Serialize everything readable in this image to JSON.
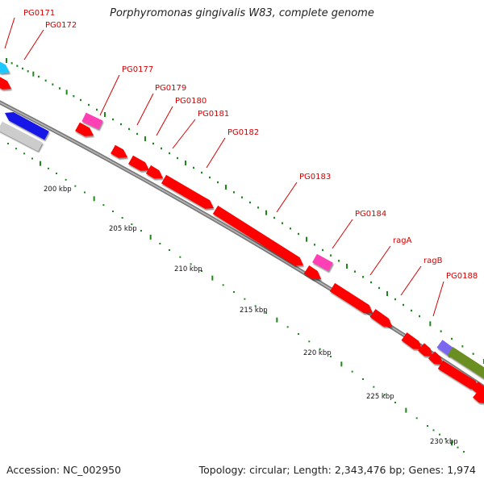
{
  "title": "Porphyromonas gingivalis W83, complete genome",
  "footer": {
    "accession_label": "Accession:",
    "accession": "NC_002950",
    "summary": "Topology: circular; Length: 2,343,476 bp; Genes: 1,974"
  },
  "colors": {
    "gene_forward": "#ff0000",
    "trna": "#ff3fb4",
    "blue_gene": "#1414e6",
    "cyan_gene": "#1ec8ff",
    "gray_gene": "#cccccc",
    "olive_gene": "#6b8e23",
    "violet_gene": "#7b68ee",
    "backbone": "#888888",
    "gc_ticks": "#1a8a1a",
    "label_text": "#d40000"
  },
  "gene_labels": [
    "PG0171",
    "PG0172",
    "PG0177",
    "PG0179",
    "PG0180",
    "PG0181",
    "PG0182",
    "PG0183",
    "PG0184",
    "ragA",
    "ragB",
    "PG0188"
  ],
  "kbp_ticks": [
    "200 kbp",
    "205 kbp",
    "210 kbp",
    "215 kbp",
    "220 kbp",
    "225 kbp",
    "230 kbp"
  ]
}
